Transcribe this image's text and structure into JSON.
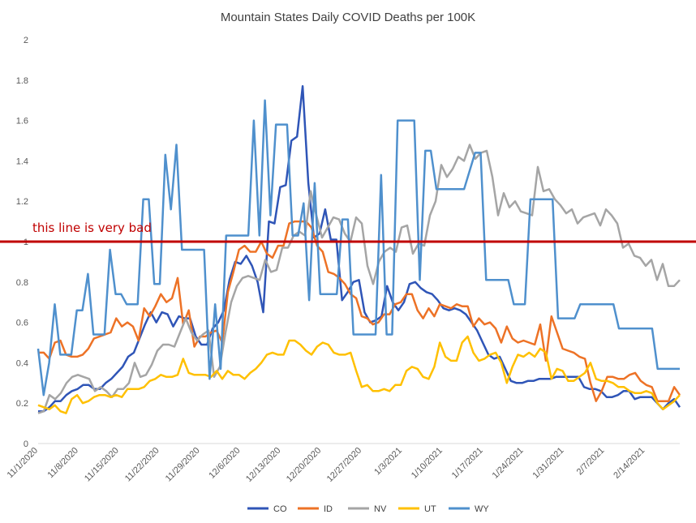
{
  "chart_data": {
    "type": "line",
    "title": "Mountain States Daily COVID Deaths per 100K",
    "xlabel": "",
    "ylabel": "",
    "ylim": [
      0,
      2
    ],
    "yticks": [
      "0",
      "0.2",
      "0.4",
      "0.6",
      "0.8",
      "1",
      "1.2",
      "1.4",
      "1.6",
      "1.8",
      "2"
    ],
    "grid": false,
    "legend_position": "bottom",
    "x_start": "11/1/2020",
    "x_end": "2/20/2021",
    "x_tick_labels": [
      "11/1/2020",
      "11/8/2020",
      "11/15/2020",
      "11/22/2020",
      "11/29/2020",
      "12/6/2020",
      "12/13/2020",
      "12/20/2020",
      "12/27/2020",
      "1/3/2021",
      "1/10/2021",
      "1/17/2021",
      "1/24/2021",
      "1/31/2021",
      "2/7/2021",
      "2/14/2021"
    ],
    "reference_line": {
      "value": 1,
      "label": "this line is very bad",
      "color": "#c00000"
    },
    "series": [
      {
        "name": "CO",
        "color": "#2f55b7",
        "values": [
          0.16,
          0.16,
          0.18,
          0.21,
          0.21,
          0.24,
          0.26,
          0.27,
          0.29,
          0.29,
          0.27,
          0.27,
          0.3,
          0.32,
          0.35,
          0.38,
          0.43,
          0.45,
          0.52,
          0.59,
          0.65,
          0.6,
          0.65,
          0.64,
          0.58,
          0.63,
          0.62,
          0.62,
          0.53,
          0.49,
          0.49,
          0.57,
          0.6,
          0.66,
          0.81,
          0.9,
          0.89,
          0.93,
          0.88,
          0.8,
          0.65,
          1.1,
          1.09,
          1.27,
          1.28,
          1.5,
          1.52,
          1.77,
          1.29,
          1.02,
          1.04,
          1.16,
          1.01,
          1.01,
          0.71,
          0.75,
          0.8,
          0.81,
          0.65,
          0.6,
          0.61,
          0.63,
          0.78,
          0.7,
          0.66,
          0.7,
          0.79,
          0.8,
          0.77,
          0.75,
          0.74,
          0.71,
          0.67,
          0.66,
          0.67,
          0.66,
          0.64,
          0.6,
          0.56,
          0.5,
          0.44,
          0.42,
          0.43,
          0.37,
          0.31,
          0.3,
          0.3,
          0.31,
          0.31,
          0.32,
          0.32,
          0.32,
          0.33,
          0.33,
          0.33,
          0.33,
          0.33,
          0.28,
          0.27,
          0.27,
          0.26,
          0.23,
          0.23,
          0.24,
          0.26,
          0.26,
          0.22,
          0.23,
          0.23,
          0.23,
          0.2,
          0.17,
          0.2,
          0.22,
          0.18
        ]
      },
      {
        "name": "ID",
        "color": "#ed7226",
        "values": [
          0.45,
          0.45,
          0.42,
          0.5,
          0.51,
          0.44,
          0.43,
          0.43,
          0.44,
          0.47,
          0.52,
          0.53,
          0.54,
          0.55,
          0.62,
          0.58,
          0.6,
          0.58,
          0.51,
          0.67,
          0.63,
          0.68,
          0.74,
          0.7,
          0.72,
          0.82,
          0.59,
          0.66,
          0.48,
          0.53,
          0.53,
          0.55,
          0.56,
          0.5,
          0.75,
          0.85,
          0.96,
          0.98,
          0.95,
          0.95,
          1.0,
          0.94,
          0.92,
          0.98,
          0.98,
          1.09,
          1.1,
          1.1,
          1.1,
          1.07,
          0.98,
          0.95,
          0.85,
          0.84,
          0.82,
          0.79,
          0.74,
          0.72,
          0.63,
          0.62,
          0.59,
          0.6,
          0.64,
          0.64,
          0.69,
          0.7,
          0.74,
          0.74,
          0.66,
          0.62,
          0.67,
          0.63,
          0.69,
          0.68,
          0.67,
          0.69,
          0.68,
          0.68,
          0.58,
          0.62,
          0.59,
          0.6,
          0.57,
          0.5,
          0.58,
          0.52,
          0.5,
          0.51,
          0.5,
          0.49,
          0.59,
          0.41,
          0.63,
          0.55,
          0.47,
          0.46,
          0.45,
          0.43,
          0.42,
          0.3,
          0.21,
          0.26,
          0.33,
          0.33,
          0.32,
          0.32,
          0.34,
          0.35,
          0.31,
          0.29,
          0.28,
          0.21,
          0.21,
          0.21,
          0.28,
          0.24
        ]
      },
      {
        "name": "NV",
        "color": "#a5a5a5",
        "values": [
          0.15,
          0.16,
          0.24,
          0.22,
          0.25,
          0.3,
          0.33,
          0.34,
          0.33,
          0.32,
          0.26,
          0.28,
          0.26,
          0.23,
          0.27,
          0.27,
          0.3,
          0.4,
          0.33,
          0.34,
          0.39,
          0.46,
          0.49,
          0.49,
          0.48,
          0.55,
          0.62,
          0.55,
          0.51,
          0.54,
          0.56,
          0.33,
          0.38,
          0.55,
          0.7,
          0.78,
          0.82,
          0.83,
          0.82,
          0.81,
          0.91,
          0.85,
          0.86,
          0.97,
          0.97,
          1.03,
          1.05,
          1.03,
          1.25,
          1.13,
          1.02,
          1.07,
          1.12,
          1.11,
          1.04,
          1.0,
          1.12,
          1.09,
          0.88,
          0.79,
          0.9,
          0.95,
          0.97,
          0.95,
          1.07,
          1.08,
          0.94,
          0.99,
          0.98,
          1.13,
          1.2,
          1.38,
          1.32,
          1.36,
          1.42,
          1.4,
          1.48,
          1.41,
          1.44,
          1.45,
          1.32,
          1.13,
          1.24,
          1.17,
          1.2,
          1.15,
          1.14,
          1.13,
          1.37,
          1.25,
          1.26,
          1.21,
          1.18,
          1.14,
          1.16,
          1.09,
          1.12,
          1.13,
          1.14,
          1.08,
          1.16,
          1.13,
          1.09,
          0.97,
          0.99,
          0.93,
          0.92,
          0.88,
          0.91,
          0.81,
          0.89,
          0.78,
          0.78,
          0.81
        ]
      },
      {
        "name": "UT",
        "color": "#ffc000",
        "values": [
          0.19,
          0.18,
          0.17,
          0.19,
          0.16,
          0.15,
          0.22,
          0.24,
          0.2,
          0.21,
          0.23,
          0.24,
          0.24,
          0.23,
          0.24,
          0.23,
          0.27,
          0.27,
          0.27,
          0.28,
          0.31,
          0.32,
          0.34,
          0.33,
          0.33,
          0.34,
          0.42,
          0.35,
          0.34,
          0.34,
          0.34,
          0.33,
          0.36,
          0.32,
          0.36,
          0.34,
          0.34,
          0.32,
          0.35,
          0.37,
          0.4,
          0.44,
          0.45,
          0.44,
          0.44,
          0.51,
          0.51,
          0.49,
          0.46,
          0.44,
          0.48,
          0.5,
          0.49,
          0.45,
          0.44,
          0.44,
          0.45,
          0.36,
          0.28,
          0.29,
          0.26,
          0.26,
          0.27,
          0.26,
          0.29,
          0.29,
          0.36,
          0.38,
          0.37,
          0.33,
          0.32,
          0.38,
          0.5,
          0.43,
          0.41,
          0.41,
          0.5,
          0.53,
          0.45,
          0.41,
          0.42,
          0.44,
          0.45,
          0.4,
          0.3,
          0.38,
          0.44,
          0.43,
          0.45,
          0.43,
          0.47,
          0.45,
          0.32,
          0.37,
          0.36,
          0.31,
          0.31,
          0.33,
          0.35,
          0.4,
          0.32,
          0.31,
          0.31,
          0.3,
          0.28,
          0.28,
          0.26,
          0.25,
          0.25,
          0.26,
          0.25,
          0.2,
          0.17,
          0.19,
          0.21,
          0.24
        ]
      },
      {
        "name": "WY",
        "color": "#4f90cd",
        "values": [
          0.47,
          0.24,
          0.4,
          0.69,
          0.44,
          0.44,
          0.44,
          0.66,
          0.66,
          0.84,
          0.54,
          0.54,
          0.54,
          0.96,
          0.74,
          0.74,
          0.69,
          0.69,
          0.69,
          1.21,
          1.21,
          0.79,
          0.79,
          1.43,
          1.16,
          1.48,
          0.96,
          0.96,
          0.96,
          0.96,
          0.96,
          0.32,
          0.69,
          0.37,
          1.03,
          1.03,
          1.03,
          1.03,
          1.03,
          1.6,
          1.03,
          1.7,
          1.13,
          1.58,
          1.58,
          1.58,
          1.03,
          1.03,
          1.19,
          0.71,
          1.29,
          0.74,
          0.74,
          0.74,
          0.74,
          1.11,
          1.11,
          0.54,
          0.54,
          0.54,
          0.54,
          0.54,
          1.33,
          0.54,
          0.54,
          1.6,
          1.6,
          1.6,
          1.6,
          0.81,
          1.45,
          1.45,
          1.26,
          1.26,
          1.26,
          1.26,
          1.26,
          1.26,
          1.35,
          1.44,
          1.44,
          0.81,
          0.81,
          0.81,
          0.81,
          0.81,
          0.69,
          0.69,
          0.69,
          1.21,
          1.21,
          1.21,
          1.21,
          1.21,
          0.62,
          0.62,
          0.62,
          0.62,
          0.69,
          0.69,
          0.69,
          0.69,
          0.69,
          0.69,
          0.69,
          0.57,
          0.57,
          0.57,
          0.57,
          0.57,
          0.57,
          0.57,
          0.37,
          0.37,
          0.37,
          0.37,
          0.37
        ]
      }
    ]
  }
}
